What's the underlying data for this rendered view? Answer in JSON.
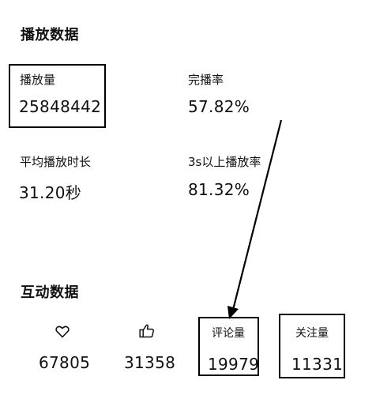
{
  "play_section": {
    "title": "播放数据",
    "metrics": [
      {
        "label": "播放量",
        "value": "25848442"
      },
      {
        "label": "完播率",
        "value": "57.82%"
      },
      {
        "label": "平均播放时长",
        "value": "31.20秒"
      },
      {
        "label": "3s以上播放率",
        "value": "81.32%"
      }
    ]
  },
  "interaction_section": {
    "title": "互动数据",
    "items": [
      {
        "icon": "heart-icon",
        "value": "67805"
      },
      {
        "icon": "thumbs-up-icon",
        "value": "31358"
      },
      {
        "label": "评论量",
        "value": "19979"
      },
      {
        "label": "关注量",
        "value": "11331"
      }
    ]
  },
  "colors": {
    "text": "#111111",
    "box_border": "#000000",
    "annotation_arrow": "#000000"
  }
}
